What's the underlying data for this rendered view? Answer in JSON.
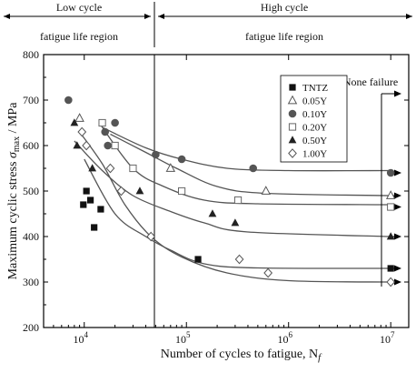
{
  "chart_data": {
    "type": "scatter",
    "x_scale": "log",
    "xlim": [
      4000,
      15000000
    ],
    "ylim": [
      200,
      800
    ],
    "xticks": [
      10000,
      100000,
      1000000,
      10000000
    ],
    "xtick_labels": [
      {
        "base": "10",
        "exp": "4"
      },
      {
        "base": "10",
        "exp": "5"
      },
      {
        "base": "10",
        "exp": "6"
      },
      {
        "base": "10",
        "exp": "7"
      }
    ],
    "yticks": [
      200,
      300,
      400,
      500,
      600,
      700,
      800
    ],
    "xlabel": {
      "text": "Number of cycles to fatigue, N",
      "sub": "f"
    },
    "ylabel": {
      "pre": "Maximum cyclic stress ",
      "sym": "σ",
      "sub": "max",
      "post": " / MPa"
    },
    "regions": {
      "boundary_x": 100000,
      "low": {
        "line1": "Low cycle",
        "line2": "fatigue life region"
      },
      "high": {
        "line1": "High cycle",
        "line2": "fatigue life region"
      }
    },
    "none_failure_label": "None failure",
    "legend_position": "top-right",
    "series": [
      {
        "name": "TNTZ",
        "marker": "square-filled",
        "points": [
          [
            10500,
            500
          ],
          [
            9800,
            470
          ],
          [
            11500,
            480
          ],
          [
            14500,
            460
          ],
          [
            12500,
            420
          ],
          [
            130000,
            350
          ]
        ],
        "runout": [
          [
            10000000,
            330
          ]
        ],
        "curve": [
          [
            10000,
            570
          ],
          [
            20000,
            450
          ],
          [
            40000,
            400
          ],
          [
            70000,
            370
          ],
          [
            150000,
            340
          ],
          [
            500000,
            331
          ],
          [
            10000000,
            330
          ]
        ]
      },
      {
        "name": "0.05Y",
        "marker": "triangle-open",
        "points": [
          [
            9000,
            660
          ],
          [
            70000,
            550
          ],
          [
            600000,
            500
          ]
        ],
        "runout": [
          [
            10000000,
            490
          ]
        ],
        "curve": [
          [
            18000,
            625
          ],
          [
            40000,
            585
          ],
          [
            80000,
            550
          ],
          [
            200000,
            510
          ],
          [
            600000,
            495
          ],
          [
            10000000,
            490
          ]
        ]
      },
      {
        "name": "0.10Y",
        "marker": "circle-filled",
        "points": [
          [
            7000,
            700
          ],
          [
            16000,
            630
          ],
          [
            17000,
            600
          ],
          [
            20000,
            650
          ],
          [
            50000,
            580
          ],
          [
            90000,
            570
          ],
          [
            450000,
            550
          ]
        ],
        "runout": [
          [
            10000000,
            540
          ]
        ],
        "curve": [
          [
            15000,
            640
          ],
          [
            40000,
            595
          ],
          [
            90000,
            570
          ],
          [
            250000,
            550
          ],
          [
            1000000,
            545
          ],
          [
            10000000,
            545
          ]
        ]
      },
      {
        "name": "0.20Y",
        "marker": "square-open",
        "points": [
          [
            15000,
            650
          ],
          [
            20000,
            600
          ],
          [
            30000,
            550
          ],
          [
            90000,
            500
          ],
          [
            320000,
            480
          ]
        ],
        "runout": [
          [
            10000000,
            465
          ]
        ],
        "curve": [
          [
            14000,
            650
          ],
          [
            30000,
            550
          ],
          [
            60000,
            510
          ],
          [
            150000,
            480
          ],
          [
            500000,
            472
          ],
          [
            10000000,
            470
          ]
        ]
      },
      {
        "name": "0.50Y",
        "marker": "triangle-filled",
        "points": [
          [
            8000,
            650
          ],
          [
            8500,
            600
          ],
          [
            12000,
            550
          ],
          [
            35000,
            500
          ],
          [
            180000,
            450
          ],
          [
            300000,
            430
          ]
        ],
        "runout": [
          [
            10000000,
            400
          ]
        ],
        "curve": [
          [
            8000,
            610
          ],
          [
            15000,
            545
          ],
          [
            30000,
            490
          ],
          [
            70000,
            455
          ],
          [
            150000,
            430
          ],
          [
            400000,
            410
          ],
          [
            10000000,
            400
          ]
        ]
      },
      {
        "name": "1.00Y",
        "marker": "diamond-open",
        "points": [
          [
            9500,
            630
          ],
          [
            10500,
            600
          ],
          [
            18000,
            550
          ],
          [
            23000,
            500
          ],
          [
            45000,
            400
          ],
          [
            330000,
            350
          ],
          [
            630000,
            320
          ]
        ],
        "runout": [
          [
            10000000,
            300
          ]
        ],
        "curve": [
          [
            9000,
            630
          ],
          [
            15000,
            560
          ],
          [
            25000,
            470
          ],
          [
            45000,
            400
          ],
          [
            90000,
            355
          ],
          [
            250000,
            320
          ],
          [
            1000000,
            303
          ],
          [
            10000000,
            300
          ]
        ]
      }
    ]
  }
}
